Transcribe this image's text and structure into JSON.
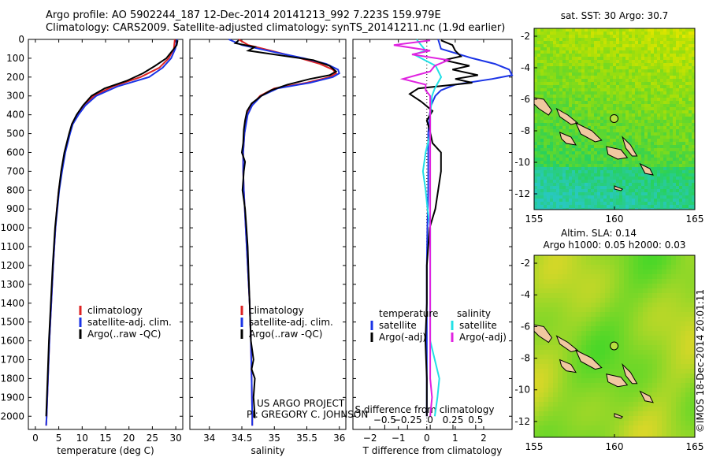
{
  "header": {
    "title_line1": "Argo profile: AO 5902244_187 12-Dec-2014 20141213_992 7.223S 159.979E",
    "title_line2": "Climatology: CARS2009. Satellite-adjusted climatology: synTS_20141211.nc (1.9d earlier)"
  },
  "colors": {
    "climatology": "#dd2222",
    "satellite": "#1a33e6",
    "argo": "#000000",
    "sal_satellite": "#22e0e6",
    "sal_argo": "#e022e0",
    "land": "#f0c8a0",
    "marker": "#b8e040"
  },
  "depth_axis": {
    "ticks": [
      0,
      100,
      200,
      300,
      400,
      500,
      600,
      700,
      800,
      900,
      1000,
      1100,
      1200,
      1300,
      1400,
      1500,
      1600,
      1700,
      1800,
      1900,
      2000
    ],
    "ylim": [
      0,
      2070
    ]
  },
  "chart_data": [
    {
      "type": "line",
      "name": "temperature-profile",
      "xlabel": "temperature (deg C)",
      "xlim": [
        -1.5,
        31.5
      ],
      "xticks": [
        0,
        5,
        10,
        15,
        20,
        25,
        30
      ],
      "xtick_labels": [
        "0",
        "5",
        "10",
        "15",
        "20",
        "25",
        "30"
      ],
      "legend": [
        "climatology",
        "satellite-adj. clim.",
        "Argo(..raw -QC)"
      ],
      "series": [
        {
          "name": "climatology",
          "depth": [
            0,
            50,
            100,
            150,
            200,
            250,
            300,
            350,
            400,
            450,
            500,
            600,
            700,
            800,
            900,
            1000,
            1200,
            1400,
            1600,
            1800,
            2000,
            2050
          ],
          "values": [
            29.8,
            29.6,
            28.5,
            26.5,
            22.5,
            16.5,
            12.5,
            10.3,
            8.9,
            7.8,
            7.3,
            6.3,
            5.6,
            5.0,
            4.6,
            4.3,
            3.8,
            3.4,
            3.0,
            2.7,
            2.4,
            2.3
          ]
        },
        {
          "name": "satellite-adj. clim.",
          "depth": [
            0,
            50,
            100,
            150,
            200,
            250,
            300,
            350,
            400,
            450,
            500,
            600,
            700,
            800,
            900,
            1000,
            1200,
            1400,
            1600,
            1800,
            2000,
            2050
          ],
          "values": [
            30.3,
            29.9,
            29.0,
            27.2,
            24.3,
            17.5,
            13.0,
            10.7,
            9.2,
            8.0,
            7.4,
            6.4,
            5.7,
            5.1,
            4.7,
            4.3,
            3.8,
            3.4,
            3.0,
            2.7,
            2.4,
            2.3
          ]
        },
        {
          "name": "Argo(..raw -QC)",
          "depth": [
            5,
            30,
            60,
            100,
            140,
            180,
            220,
            260,
            300,
            350,
            400,
            450,
            500,
            600,
            700,
            800,
            900,
            1000,
            1200,
            1400,
            1600,
            1800,
            2000
          ],
          "values": [
            30.4,
            30.2,
            29.3,
            28.0,
            25.6,
            23.0,
            19.5,
            14.8,
            12.0,
            10.2,
            8.8,
            7.8,
            7.2,
            6.2,
            5.5,
            5.0,
            4.6,
            4.2,
            3.7,
            3.3,
            2.9,
            2.6,
            2.3
          ]
        }
      ]
    },
    {
      "type": "line",
      "name": "salinity-profile",
      "xlabel": "salinity",
      "xlim": [
        33.7,
        36.1
      ],
      "xticks": [
        34,
        34.5,
        35,
        35.5,
        36
      ],
      "xtick_labels": [
        "34",
        "34.5",
        "35",
        "35.5",
        "36"
      ],
      "legend": [
        "climatology",
        "satellite-adj. clim.",
        "Argo(..raw -QC)"
      ],
      "annotation": [
        "US ARGO PROJECT",
        "PI: GREGORY C. JOHNSON"
      ],
      "series": [
        {
          "name": "climatology",
          "depth": [
            0,
            30,
            60,
            100,
            130,
            160,
            180,
            200,
            230,
            260,
            300,
            350,
            400,
            500,
            600,
            700,
            800,
            1000,
            1200,
            1400,
            1600,
            1800,
            2000,
            2050
          ],
          "values": [
            34.45,
            34.6,
            34.95,
            35.4,
            35.7,
            35.9,
            35.95,
            35.85,
            35.5,
            35.0,
            34.78,
            34.65,
            34.58,
            34.54,
            34.52,
            34.52,
            34.53,
            34.56,
            34.59,
            34.62,
            34.64,
            34.65,
            34.66,
            34.66
          ]
        },
        {
          "name": "satellite-adj. clim.",
          "depth": [
            0,
            30,
            60,
            100,
            130,
            160,
            180,
            200,
            230,
            260,
            300,
            350,
            400,
            500,
            600,
            700,
            800,
            1000,
            1200,
            1400,
            1600,
            1800,
            2000,
            2050
          ],
          "values": [
            34.3,
            34.5,
            34.9,
            35.45,
            35.8,
            35.98,
            36.0,
            35.9,
            35.55,
            35.05,
            34.8,
            34.66,
            34.59,
            34.54,
            34.52,
            34.52,
            34.53,
            34.56,
            34.59,
            34.62,
            34.64,
            34.65,
            34.66,
            34.66
          ]
        },
        {
          "name": "Argo(..raw -QC)",
          "depth": [
            5,
            20,
            40,
            60,
            80,
            110,
            140,
            170,
            190,
            210,
            240,
            270,
            300,
            340,
            380,
            430,
            480,
            550,
            600,
            650,
            700,
            750,
            800,
            850,
            900,
            1000,
            1100,
            1200,
            1400,
            1600,
            1700,
            1750,
            1800,
            1900,
            2000,
            2010
          ],
          "values": [
            34.45,
            34.4,
            34.7,
            34.6,
            35.0,
            35.6,
            35.85,
            35.95,
            35.85,
            35.55,
            35.2,
            34.95,
            34.8,
            34.65,
            34.58,
            34.55,
            34.53,
            34.52,
            34.5,
            34.55,
            34.53,
            34.52,
            34.51,
            34.53,
            34.55,
            34.57,
            34.59,
            34.6,
            34.62,
            34.64,
            34.68,
            34.65,
            34.7,
            34.68,
            34.7,
            34.7
          ]
        }
      ]
    },
    {
      "type": "line",
      "name": "difference-profile",
      "xlabel": "T difference from climatology",
      "xlabel_top": "S difference from climatology",
      "xlim": [
        -2.6,
        3.0
      ],
      "xticks": [
        -2,
        -1,
        0,
        1,
        2
      ],
      "xtick_labels": [
        "−2",
        "−1",
        "0",
        "1",
        "2"
      ],
      "sticks": [
        -0.5,
        -0.25,
        0,
        0.25,
        0.5
      ],
      "stick_labels": [
        "−0.5",
        "−0.25",
        "0",
        "0.25",
        "0.5"
      ],
      "legend_title_left": "temperature",
      "legend_title_right": "salinity",
      "legend": [
        "satellite",
        "Argo(-adj)",
        "satellite",
        "Argo(-adj)"
      ],
      "series": [
        {
          "name": "T satellite",
          "depth": [
            0,
            50,
            100,
            130,
            160,
            190,
            210,
            240,
            270,
            300,
            350,
            400,
            500,
            600,
            700,
            800,
            1000,
            1200,
            1400,
            1600,
            1800,
            2000
          ],
          "values": [
            0.4,
            0.5,
            1.6,
            2.4,
            2.9,
            3.0,
            2.3,
            1.0,
            0.5,
            0.3,
            0.15,
            0.1,
            0.05,
            0.05,
            0.05,
            0.05,
            0.02,
            0.0,
            0.0,
            0.0,
            0.0,
            0.0
          ]
        },
        {
          "name": "T Argo(-adj)",
          "depth": [
            5,
            30,
            60,
            90,
            110,
            140,
            160,
            190,
            210,
            230,
            260,
            290,
            330,
            380,
            430,
            480,
            550,
            600,
            700,
            800,
            900,
            1000,
            1200,
            1400,
            1600,
            1800,
            2000
          ],
          "values": [
            0.5,
            0.9,
            1.0,
            1.2,
            0.6,
            1.5,
            0.9,
            1.8,
            1.0,
            1.6,
            -0.3,
            -0.6,
            -0.2,
            0.2,
            0.0,
            0.1,
            0.2,
            0.5,
            0.5,
            0.4,
            0.3,
            0.1,
            0.0,
            0.0,
            -0.05,
            0.0,
            0.0
          ]
        },
        {
          "name": "S satellite",
          "depth": [
            0,
            30,
            60,
            80,
            100,
            140,
            200,
            260,
            300,
            400,
            500,
            600,
            700,
            800,
            900,
            1000,
            1200,
            1400,
            1600,
            1700,
            1800,
            1900,
            2000
          ],
          "values": [
            -0.15,
            -0.1,
            -0.05,
            -0.18,
            -0.1,
            0.06,
            0.12,
            0.05,
            0.02,
            0.0,
            0.0,
            -0.05,
            -0.08,
            -0.05,
            -0.03,
            0.0,
            0.0,
            0.0,
            0.0,
            0.05,
            0.1,
            0.08,
            0.05
          ]
        },
        {
          "name": "S Argo(-adj)",
          "depth": [
            5,
            30,
            60,
            80,
            110,
            140,
            170,
            190,
            210,
            240,
            270,
            300,
            340,
            380,
            430,
            480,
            550,
            600,
            800,
            1000,
            1200,
            1400,
            1600,
            1800,
            1900,
            2000
          ],
          "values": [
            0.0,
            -0.4,
            0.0,
            -0.2,
            0.2,
            0.05,
            0.0,
            -0.15,
            -0.3,
            -0.05,
            -0.05,
            0.0,
            0.0,
            0.0,
            0.0,
            0.0,
            0.0,
            0.0,
            0.0,
            0.0,
            0.0,
            0.0,
            0.0,
            0.0,
            0.02,
            0.0
          ]
        }
      ]
    },
    {
      "type": "heatmap",
      "name": "sst-map",
      "title": "sat. SST: 30  Argo: 30.7",
      "xlim": [
        155,
        165
      ],
      "ylim": [
        -13,
        -1.5
      ],
      "xticks": [
        155,
        160,
        165
      ],
      "xtick_labels": [
        "155",
        "160",
        "165"
      ],
      "yticks": [
        -2,
        -4,
        -6,
        -8,
        -10,
        -12
      ],
      "ytick_labels": [
        "-2",
        "-4",
        "-6",
        "-8",
        "-10",
        "-12"
      ],
      "argo_position": [
        159.979,
        -7.223
      ]
    },
    {
      "type": "heatmap",
      "name": "sla-map",
      "title": "Altim. SLA: 0.14",
      "title2": "Argo h1000: 0.05 h2000: 0.03",
      "xlim": [
        155,
        165
      ],
      "ylim": [
        -13,
        -1.5
      ],
      "xticks": [
        155,
        160,
        165
      ],
      "xtick_labels": [
        "155",
        "160",
        "165"
      ],
      "yticks": [
        -2,
        -4,
        -6,
        -8,
        -10,
        -12
      ],
      "ytick_labels": [
        "-2",
        "-4",
        "-6",
        "-8",
        "-10",
        "-12"
      ],
      "argo_position": [
        159.979,
        -7.223
      ]
    }
  ],
  "footer": {
    "credit": "©IMOS 18-Dec-2014 20:01:11"
  }
}
